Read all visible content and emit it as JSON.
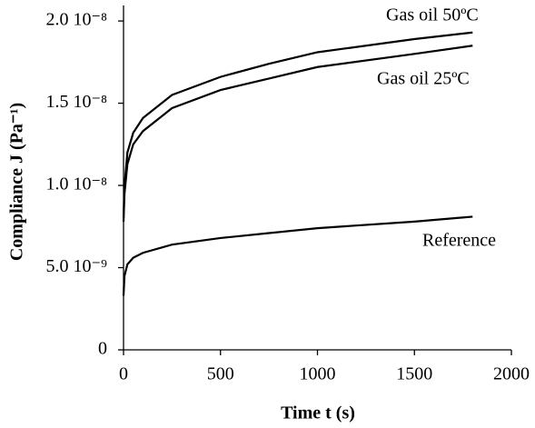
{
  "chart_data": {
    "type": "line",
    "xlabel": "Time t (s)",
    "ylabel": "Compliance J (Pa⁻¹)",
    "x": [
      0,
      5,
      20,
      50,
      100,
      250,
      500,
      750,
      1000,
      1500,
      1800
    ],
    "series": [
      {
        "name": "Gas oil 50ºC",
        "color": "#000000",
        "values": [
          8e-09,
          1e-08,
          1.2e-08,
          1.32e-08,
          1.41e-08,
          1.55e-08,
          1.66e-08,
          1.74e-08,
          1.81e-08,
          1.89e-08,
          1.93e-08
        ]
      },
      {
        "name": "Gas oil 25ºC",
        "color": "#000000",
        "values": [
          7.8e-09,
          9.5e-09,
          1.13e-08,
          1.25e-08,
          1.33e-08,
          1.47e-08,
          1.58e-08,
          1.65e-08,
          1.72e-08,
          1.8e-08,
          1.85e-08
        ]
      },
      {
        "name": "Reference",
        "color": "#000000",
        "values": [
          3.3e-09,
          4.5e-09,
          5.2e-09,
          5.6e-09,
          5.9e-09,
          6.4e-09,
          6.8e-09,
          7.1e-09,
          7.4e-09,
          7.8e-09,
          8.1e-09
        ]
      }
    ],
    "xlim": [
      0,
      2000
    ],
    "ylim": [
      0,
      2.1e-08
    ],
    "xticks": [
      0,
      500,
      1000,
      1500,
      2000
    ],
    "yticks": [
      0,
      {
        "value": 5e-09,
        "label": "5.0 10⁻⁹"
      },
      {
        "value": 1e-08,
        "label": "1.0 10⁻⁸"
      },
      {
        "value": 1.5e-08,
        "label": "1.5 10⁻⁸"
      },
      {
        "value": 2e-08,
        "label": "2.0 10⁻⁸"
      }
    ],
    "grid": false
  }
}
